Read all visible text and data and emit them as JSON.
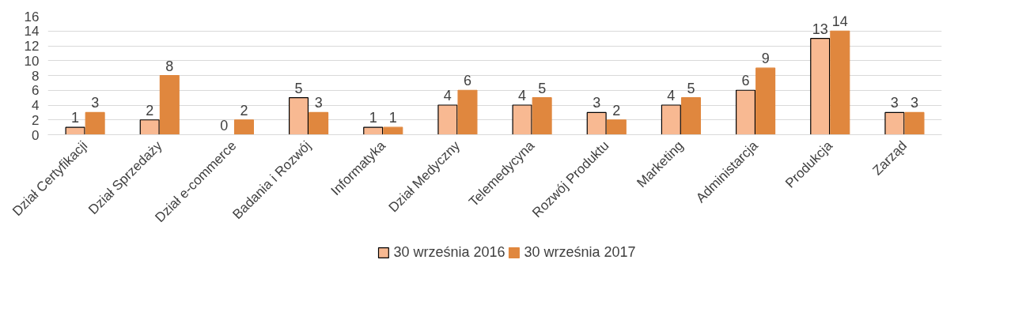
{
  "chart_data": {
    "type": "bar",
    "categories": [
      "Dział Certyfikacji",
      "Dział Sprzedaży",
      "Dział e-commerce",
      "Badania i Rozwój",
      "Informatyka",
      "Dział Medyczny",
      "Telemedycyna",
      "Rozwój Produktu",
      "Marketing",
      "Administarcja",
      "Produkcja",
      "Zarząd"
    ],
    "series": [
      {
        "name": "30 września 2016",
        "color": "#f8b992",
        "values": [
          1,
          2,
          0,
          5,
          1,
          4,
          4,
          3,
          4,
          6,
          13,
          3
        ]
      },
      {
        "name": "30 września 2017",
        "color": "#e0873e",
        "values": [
          3,
          8,
          2,
          3,
          1,
          6,
          5,
          2,
          5,
          9,
          14,
          3
        ]
      }
    ],
    "ylim": [
      0,
      16
    ],
    "yticks": [
      0,
      2,
      4,
      6,
      8,
      10,
      12,
      14,
      16
    ],
    "grid": "y",
    "legend": "bottom",
    "data_labels": true
  }
}
